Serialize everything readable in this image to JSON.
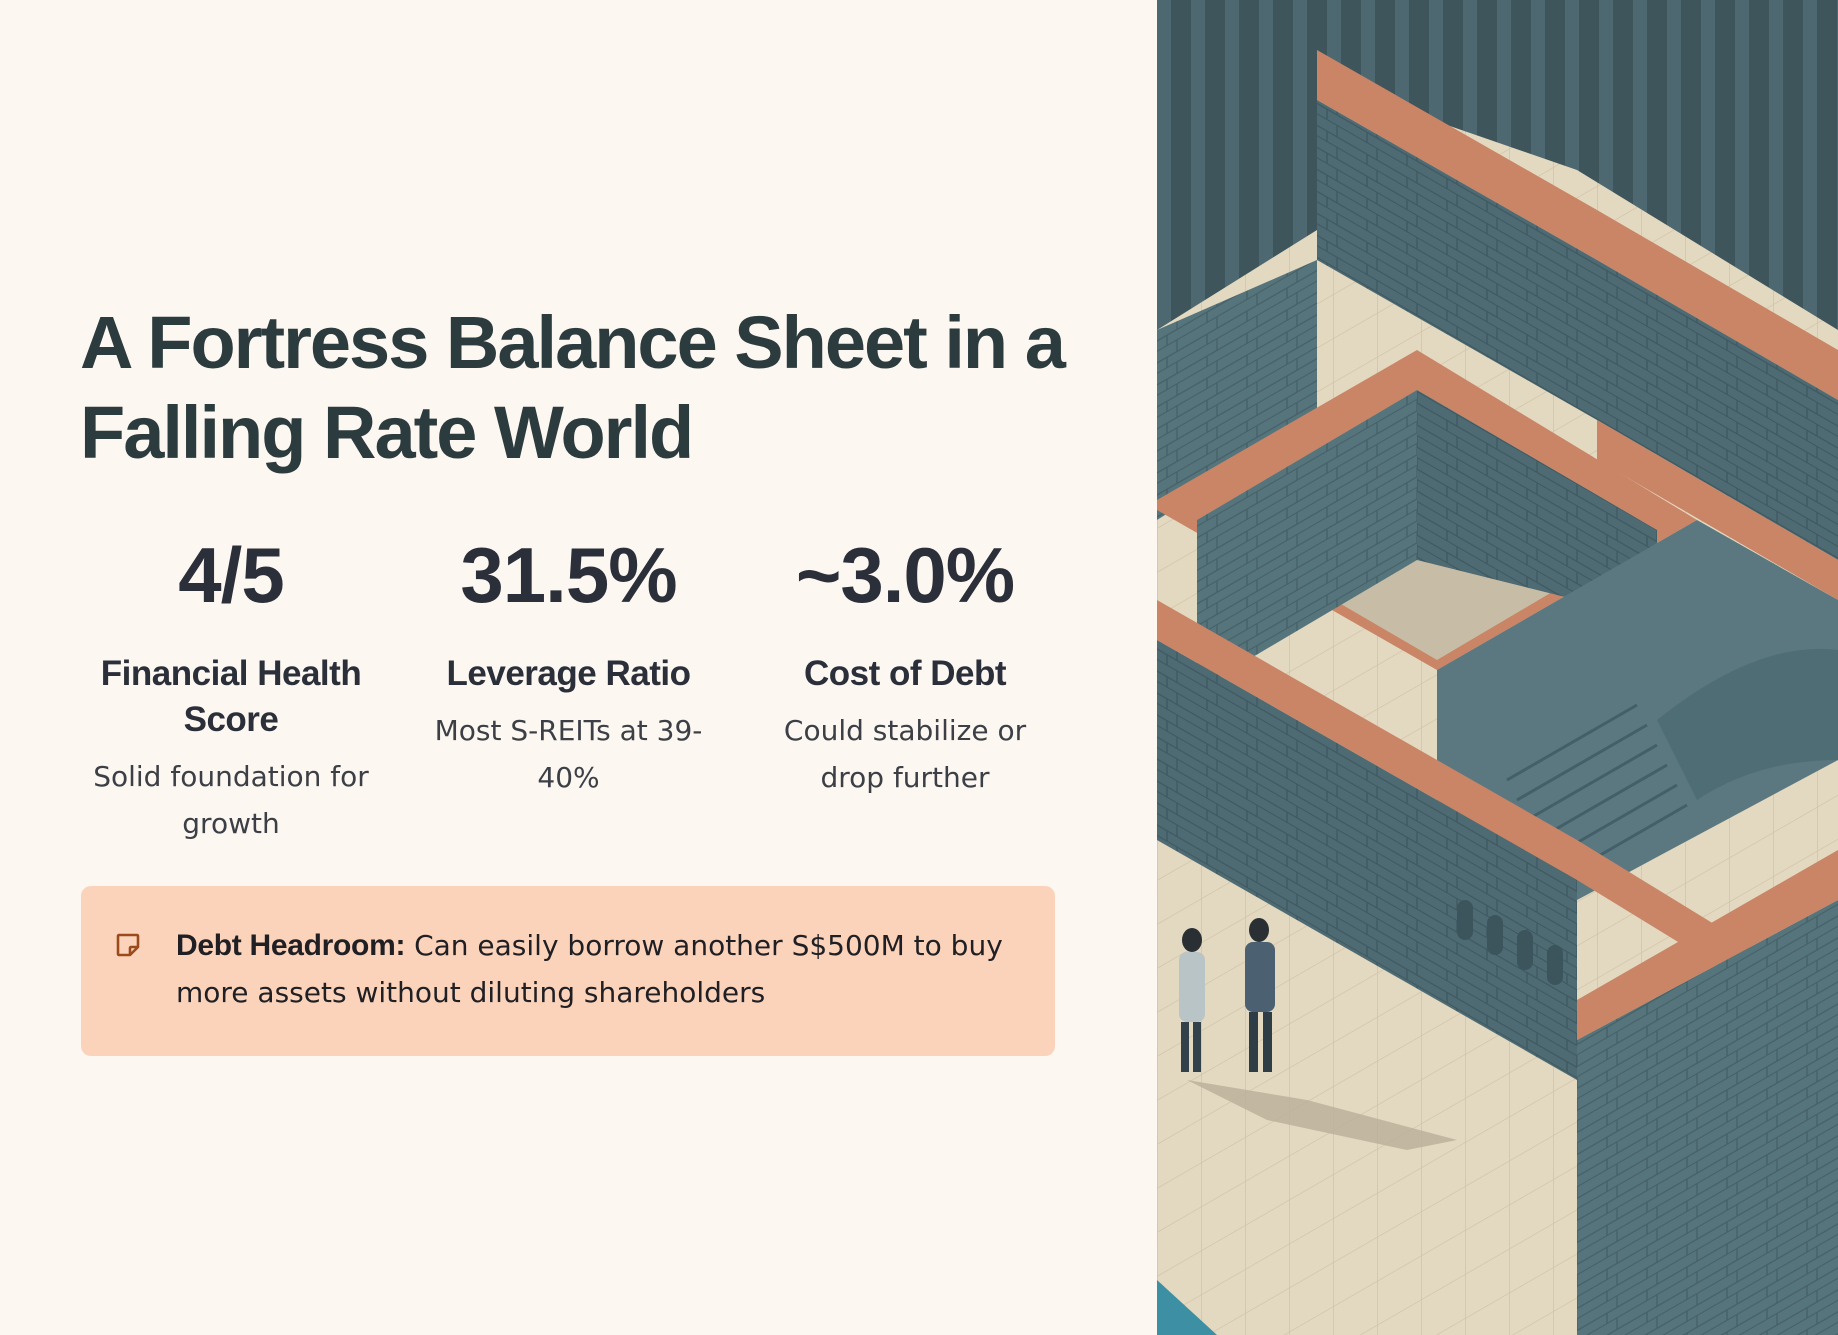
{
  "slide": {
    "title": "A Fortress Balance Sheet in a Falling Rate World",
    "metrics": [
      {
        "value": "4/5",
        "label": "Financial Health Score",
        "description": "Solid foundation for growth"
      },
      {
        "value": "31.5%",
        "label": "Leverage Ratio",
        "description": "Most S-REITs at 39-40%"
      },
      {
        "value": "~3.0%",
        "label": "Cost of Debt",
        "description": "Could stabilize or drop further"
      }
    ],
    "callout": {
      "icon": "note-icon",
      "heading": "Debt Headroom:",
      "text": "Can easily borrow another S$500M to buy more assets without diluting shareholders"
    }
  },
  "colors": {
    "background": "#fdf7f1",
    "title": "#2c3b3d",
    "callout_bg": "#fbd3bb",
    "icon": "#9a4a1c",
    "illustration_wall": "#4e6b74",
    "illustration_ledge": "#c98566",
    "illustration_floor": "#e3d8c0"
  }
}
